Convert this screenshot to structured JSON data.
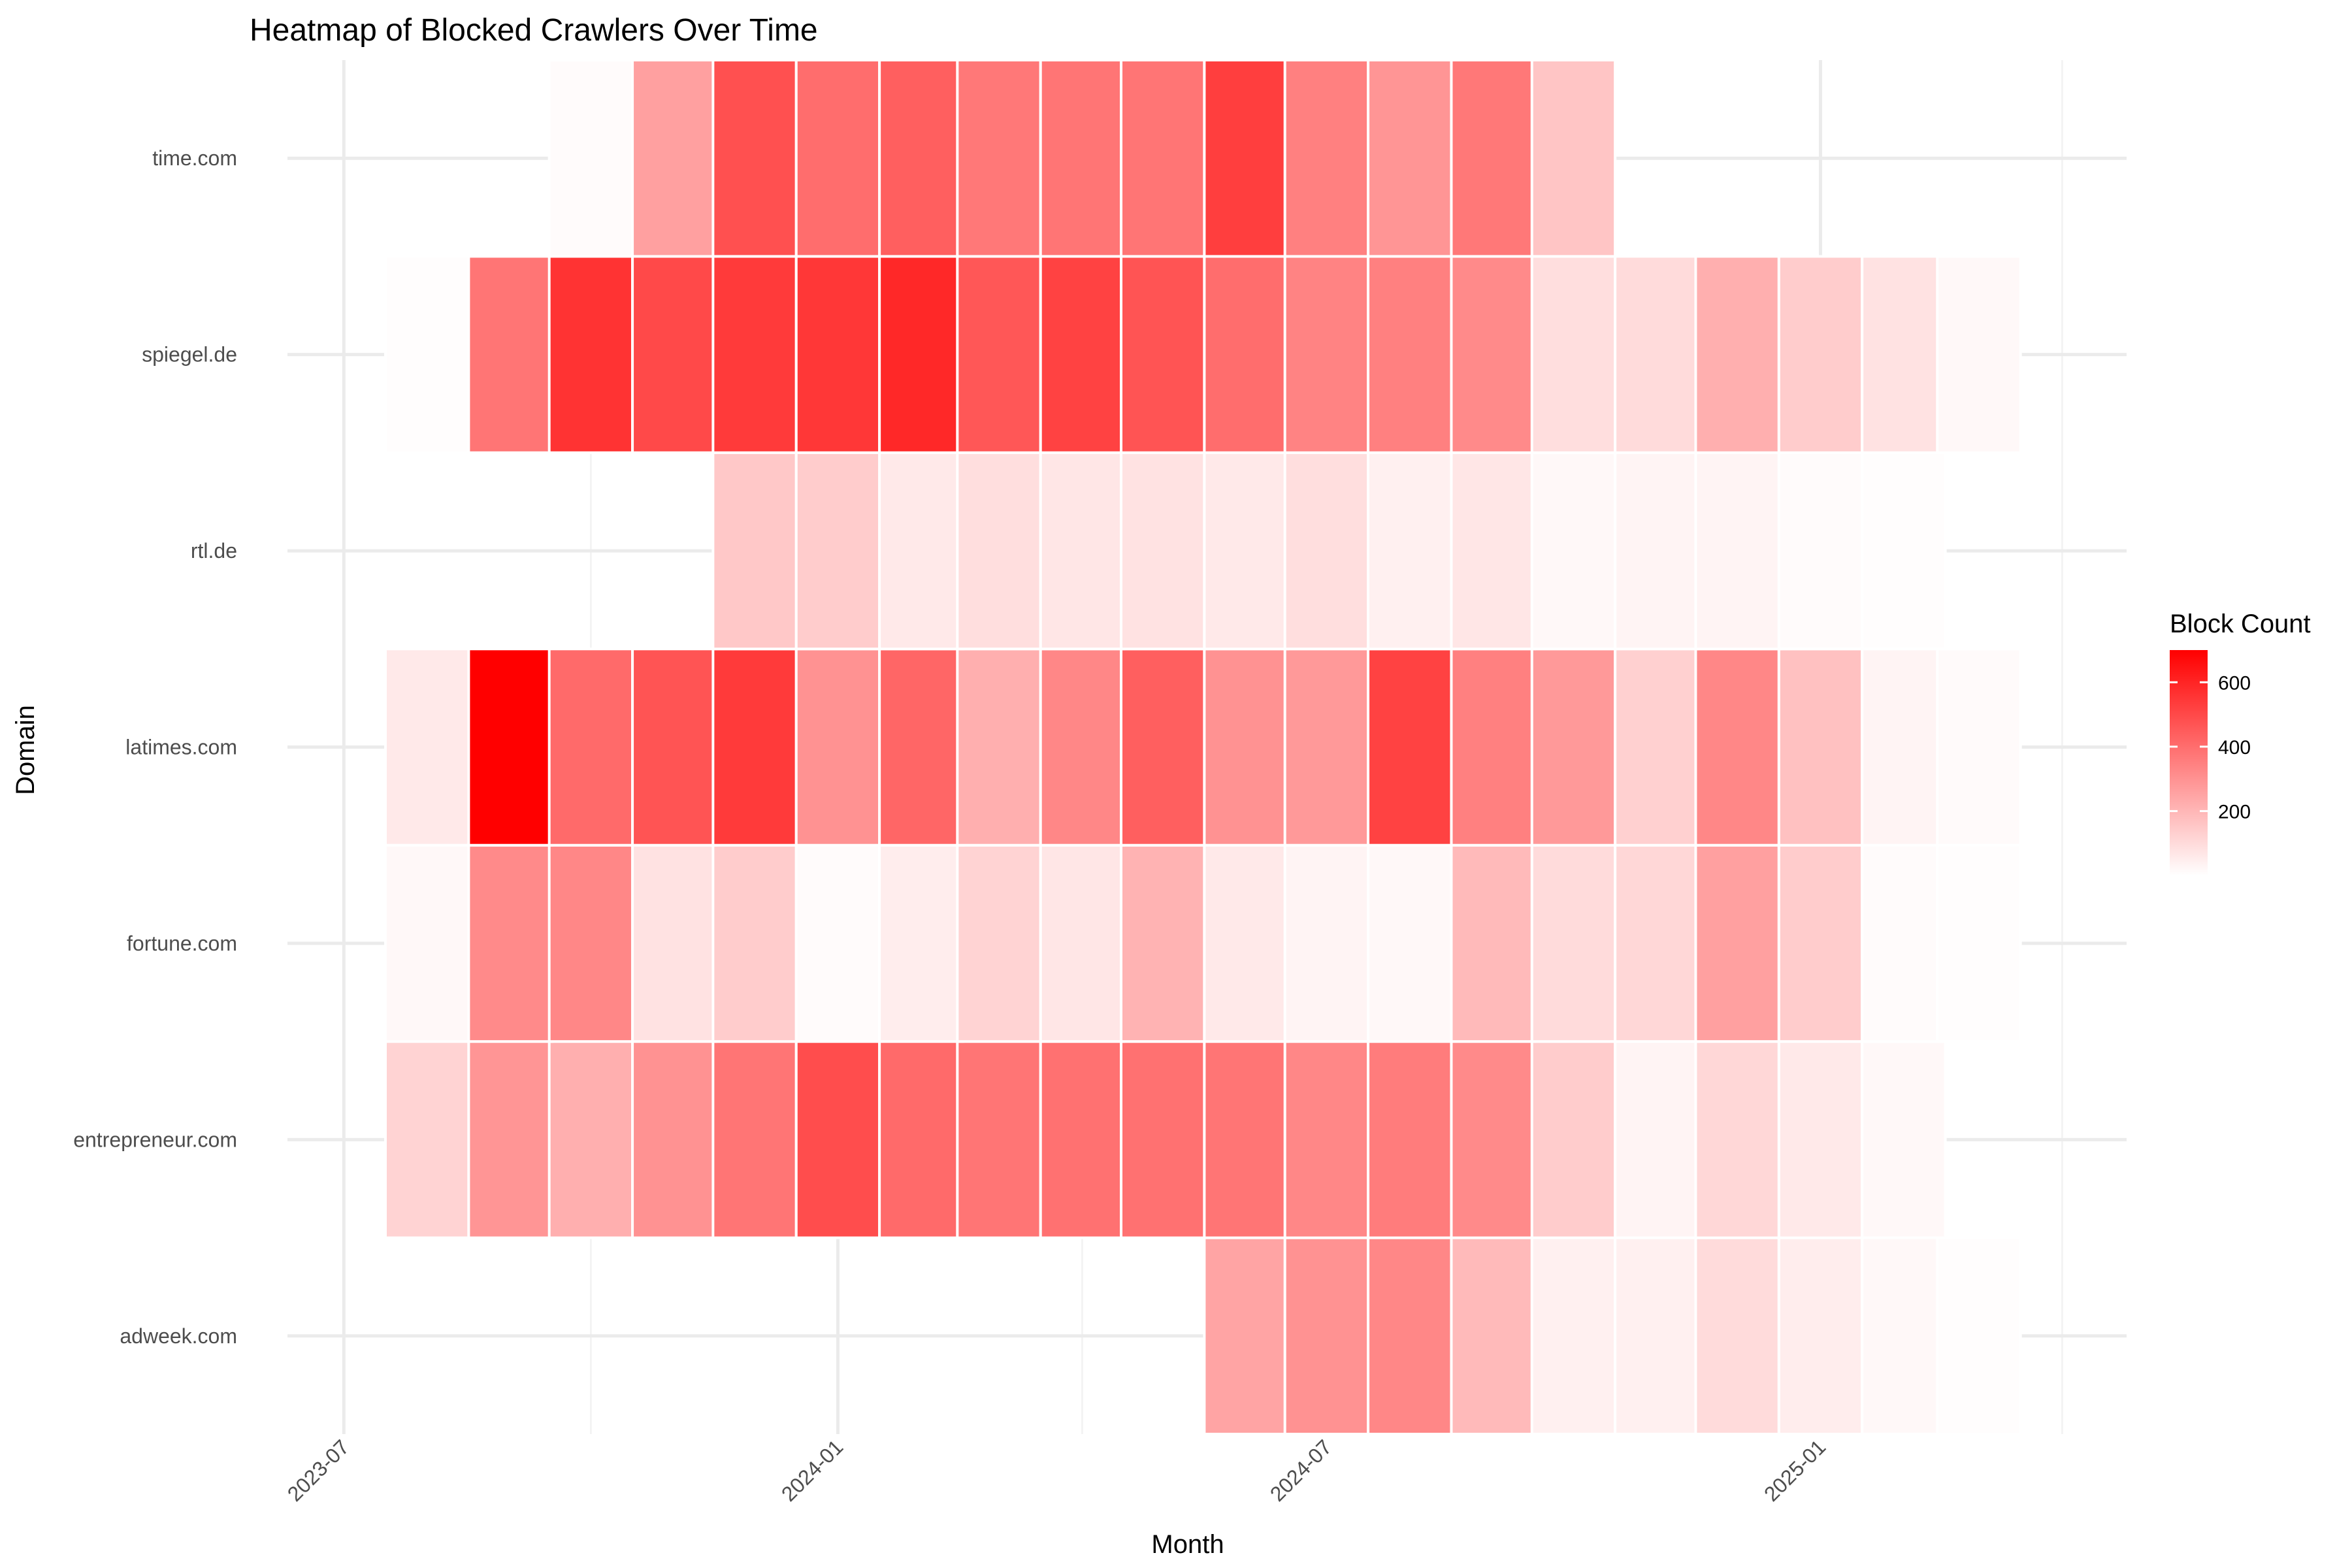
{
  "chart_data": {
    "type": "heatmap",
    "title": "Heatmap of Blocked Crawlers Over Time",
    "xlabel": "Month",
    "ylabel": "Domain",
    "legend": {
      "title": "Block Count",
      "position": "right",
      "ticks": [
        200,
        400,
        600
      ],
      "range": [
        0,
        700
      ],
      "low_color": "#ffffff",
      "high_color": "#ff0000"
    },
    "x_ticks": [
      "2023-07",
      "2024-01",
      "2024-07",
      "2025-01"
    ],
    "x_minor_ticks": [
      "2023-10",
      "2024-04",
      "2024-10",
      "2025-04"
    ],
    "xlim": [
      "2023-06-10",
      "2025-04-25"
    ],
    "grid": true,
    "months": [
      "2023-08",
      "2023-09",
      "2023-10",
      "2023-11",
      "2023-12",
      "2024-01",
      "2024-02",
      "2024-03",
      "2024-04",
      "2024-05",
      "2024-06",
      "2024-07",
      "2024-08",
      "2024-09",
      "2024-10",
      "2024-11",
      "2024-12",
      "2025-01",
      "2025-02",
      "2025-03"
    ],
    "domains": [
      "adweek.com",
      "entrepreneur.com",
      "fortune.com",
      "latimes.com",
      "rtl.de",
      "spiegel.de",
      "time.com"
    ],
    "values": {
      "time.com": [
        null,
        null,
        10,
        260,
        480,
        400,
        440,
        370,
        380,
        380,
        530,
        350,
        290,
        370,
        160,
        null,
        null,
        null,
        null,
        null
      ],
      "spiegel.de": [
        5,
        380,
        560,
        500,
        540,
        550,
        590,
        460,
        520,
        470,
        400,
        340,
        350,
        320,
        90,
        100,
        220,
        140,
        80,
        20
      ],
      "rtl.de": [
        null,
        null,
        null,
        null,
        150,
        140,
        60,
        90,
        70,
        80,
        60,
        90,
        40,
        70,
        20,
        30,
        30,
        10,
        5,
        null
      ],
      "latimes.com": [
        60,
        700,
        410,
        470,
        540,
        300,
        420,
        220,
        330,
        440,
        300,
        280,
        520,
        350,
        280,
        130,
        330,
        170,
        30,
        15
      ],
      "fortune.com": [
        20,
        320,
        330,
        80,
        140,
        10,
        50,
        120,
        70,
        210,
        60,
        30,
        20,
        190,
        100,
        110,
        260,
        140,
        10,
        5
      ],
      "entrepreneur.com": [
        120,
        290,
        220,
        300,
        380,
        490,
        410,
        380,
        390,
        390,
        380,
        330,
        360,
        320,
        140,
        30,
        110,
        60,
        20,
        null
      ],
      "adweek.com": [
        null,
        null,
        null,
        null,
        null,
        null,
        null,
        null,
        null,
        null,
        250,
        300,
        330,
        190,
        40,
        40,
        100,
        50,
        20,
        5
      ]
    }
  }
}
